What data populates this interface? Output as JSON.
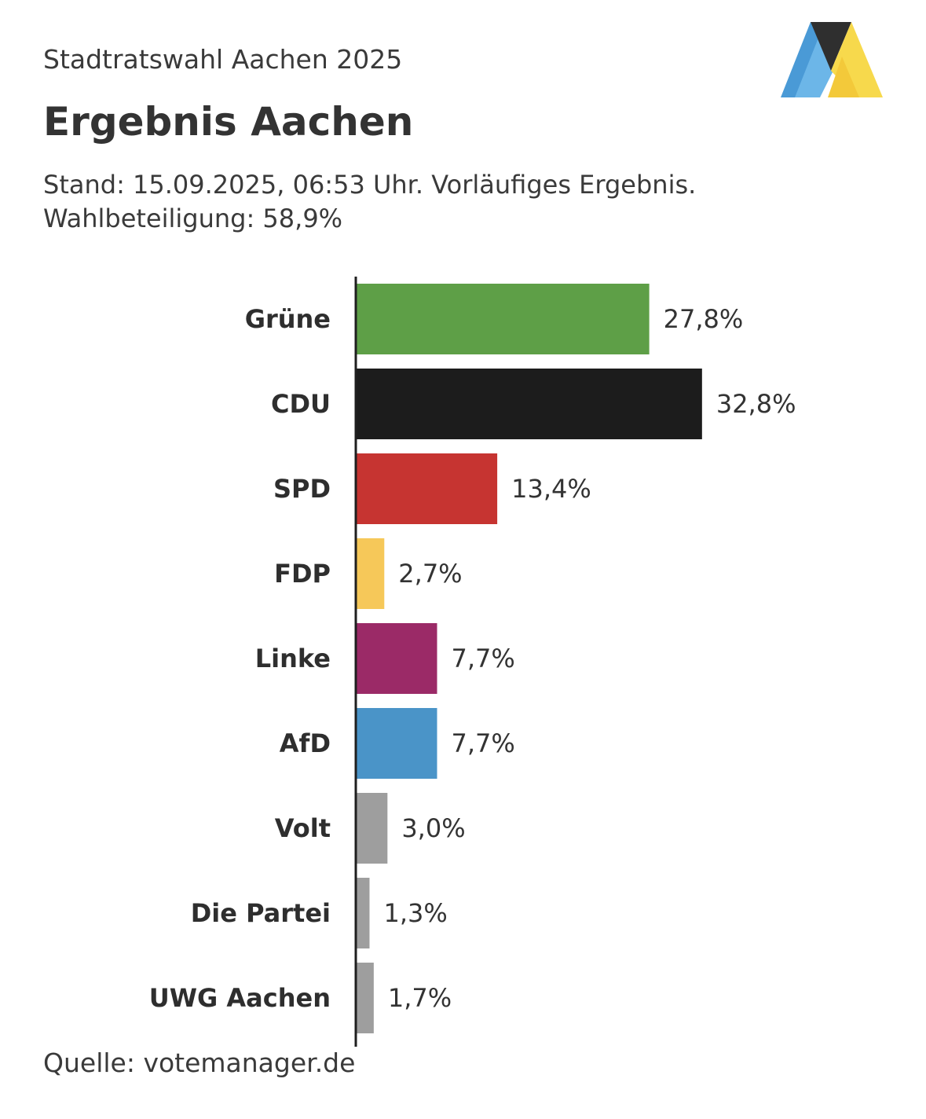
{
  "header": {
    "kicker": "Stadtratswahl Aachen 2025",
    "title": "Ergebnis Aachen",
    "subtitle_line1": "Stand: 15.09.2025, 06:53 Uhr. Vorläufiges Ergebnis.",
    "subtitle_line2": "Wahlbeteiligung: 58,9%"
  },
  "logo": {
    "icon": "brand-logo-icon",
    "colors": [
      "#4a9ad6",
      "#2b2b2b",
      "#f7d94c"
    ]
  },
  "footer": {
    "source": "Quelle: votemanager.de"
  },
  "chart_data": {
    "type": "bar",
    "orientation": "horizontal",
    "title": "Ergebnis Aachen",
    "categories": [
      "Grüne",
      "CDU",
      "SPD",
      "FDP",
      "Linke",
      "AfD",
      "Volt",
      "Die Partei",
      "UWG Aachen"
    ],
    "values": [
      27.8,
      32.8,
      13.4,
      2.7,
      7.7,
      7.7,
      3.0,
      1.3,
      1.7
    ],
    "value_labels": [
      "27,8%",
      "32,8%",
      "13,4%",
      "2,7%",
      "7,7%",
      "7,7%",
      "3,0%",
      "1,3%",
      "1,7%"
    ],
    "colors": [
      "#5e9f47",
      "#1c1c1c",
      "#c63431",
      "#f6c859",
      "#9b2a67",
      "#4a94c8",
      "#9e9e9e",
      "#9e9e9e",
      "#9e9e9e"
    ],
    "unit": "%",
    "xlim": [
      0,
      100
    ],
    "grid": false,
    "legend": "none"
  }
}
